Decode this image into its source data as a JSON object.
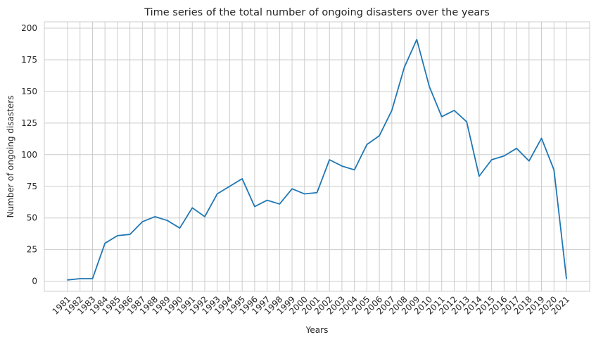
{
  "chart_data": {
    "type": "line",
    "title": "Time series of the total number of ongoing disasters over the years",
    "xlabel": "Years",
    "ylabel": "Number of ongoing disasters",
    "x": [
      "1981",
      "1982",
      "1983",
      "1984",
      "1985",
      "1986",
      "1987",
      "1988",
      "1989",
      "1990",
      "1991",
      "1992",
      "1993",
      "1994",
      "1995",
      "1996",
      "1997",
      "1998",
      "1999",
      "2000",
      "2001",
      "2002",
      "2003",
      "2004",
      "2005",
      "2006",
      "2007",
      "2008",
      "2009",
      "2010",
      "2011",
      "2012",
      "2013",
      "2014",
      "2015",
      "2016",
      "2017",
      "2018",
      "2019",
      "2020",
      "2021"
    ],
    "series": [
      {
        "values": [
          1,
          2,
          2,
          30,
          36,
          37,
          47,
          51,
          48,
          42,
          58,
          51,
          69,
          75,
          81,
          59,
          64,
          61,
          73,
          69,
          70,
          96,
          91,
          88,
          108,
          115,
          135,
          169,
          191,
          154,
          130,
          135,
          126,
          83,
          96,
          99,
          105,
          95,
          113,
          88,
          2
        ]
      }
    ],
    "yticks": [
      "0",
      "25",
      "50",
      "75",
      "100",
      "125",
      "150",
      "175",
      "200"
    ],
    "ylim": [
      -8,
      205
    ],
    "grid": true,
    "line_color": "#1f77b4",
    "grid_color": "#cccccc"
  }
}
